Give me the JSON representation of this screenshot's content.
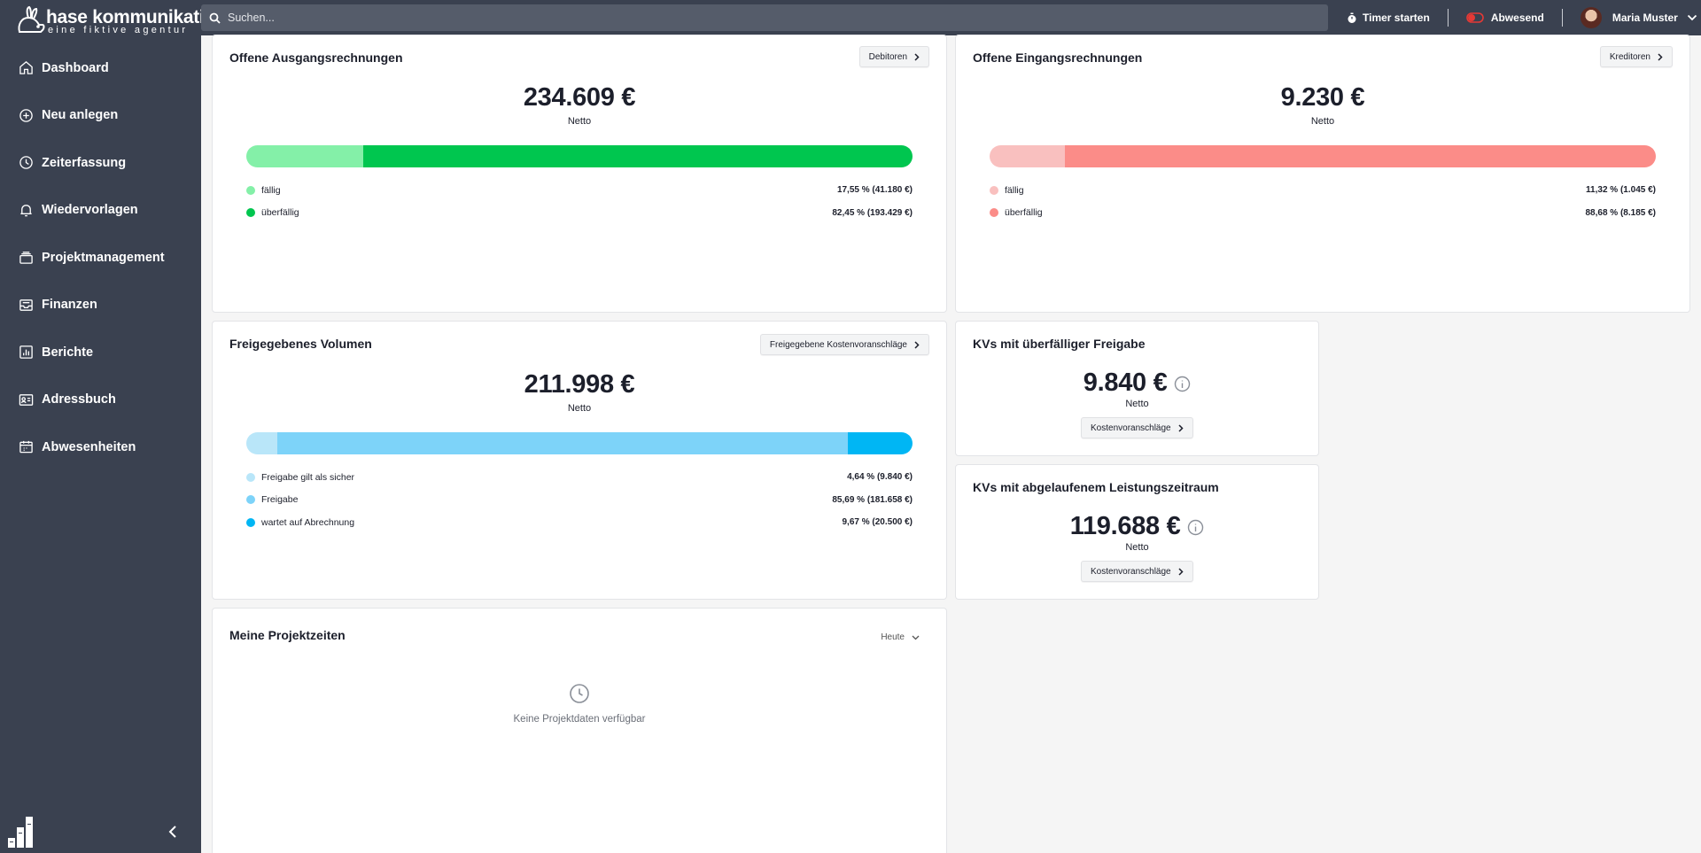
{
  "brand": {
    "name": "hase kommunikation",
    "tagline": "eine fiktive agentur"
  },
  "search": {
    "placeholder": "Suchen..."
  },
  "topbar": {
    "timer_label": "Timer starten",
    "absent_label": "Abwesend",
    "user_name": "Maria Muster"
  },
  "sidebar": {
    "items": [
      {
        "label": "Dashboard",
        "icon": "home-icon"
      },
      {
        "label": "Neu anlegen",
        "icon": "plus-circle-icon"
      },
      {
        "label": "Zeiterfassung",
        "icon": "clock-icon"
      },
      {
        "label": "Wiedervorlagen",
        "icon": "bell-icon"
      },
      {
        "label": "Projektmanagement",
        "icon": "layers-icon"
      },
      {
        "label": "Finanzen",
        "icon": "inbox-icon"
      },
      {
        "label": "Berichte",
        "icon": "chart-icon"
      },
      {
        "label": "Adressbuch",
        "icon": "address-card-icon"
      },
      {
        "label": "Abwesenheiten",
        "icon": "calendar-icon"
      }
    ]
  },
  "cards": {
    "ausgang": {
      "title": "Offene Ausgangsrechnungen",
      "button": "Debitoren",
      "value": "234.609 €",
      "sub": "Netto",
      "segments": [
        {
          "label": "fällig",
          "value": "17,55 % (41.180 €)",
          "fraction": 0.1755,
          "color": "#84f0a8"
        },
        {
          "label": "überfällig",
          "value": "82,45 % (193.429 €)",
          "fraction": 0.8245,
          "color": "#00c64f"
        }
      ]
    },
    "eingang": {
      "title": "Offene Eingangsrechnungen",
      "button": "Kreditoren",
      "value": "9.230 €",
      "sub": "Netto",
      "segments": [
        {
          "label": "fällig",
          "value": "11,32 % (1.045 €)",
          "fraction": 0.1132,
          "color": "#f9c0bf"
        },
        {
          "label": "überfällig",
          "value": "88,68 % (8.185 €)",
          "fraction": 0.8868,
          "color": "#fb8c88"
        }
      ]
    },
    "volumen": {
      "title": "Freigegebenes Volumen",
      "button": "Freigegebene Kostenvoranschläge",
      "value": "211.998 €",
      "sub": "Netto",
      "segments": [
        {
          "label": "Freigabe gilt als sicher",
          "value": "4,64 % (9.840 €)",
          "fraction": 0.0464,
          "color": "#b9e6f9"
        },
        {
          "label": "Freigabe",
          "value": "85,69 % (181.658 €)",
          "fraction": 0.8569,
          "color": "#7dd3f9"
        },
        {
          "label": "wartet auf Abrechnung",
          "value": "9,67 % (20.500 €)",
          "fraction": 0.0967,
          "color": "#00b6f4"
        }
      ]
    },
    "kv_freigabe": {
      "title": "KVs mit überfälliger Freigabe",
      "value": "9.840 €",
      "sub": "Netto",
      "button": "Kostenvoranschläge"
    },
    "kv_leistung": {
      "title": "KVs mit abgelaufenem Leistungszeitraum",
      "value": "119.688 €",
      "sub": "Netto",
      "button": "Kostenvoranschläge"
    },
    "projektzeiten": {
      "title": "Meine Projektzeiten",
      "dropdown": "Heute",
      "empty": "Keine Projektdaten verfügbar"
    }
  }
}
